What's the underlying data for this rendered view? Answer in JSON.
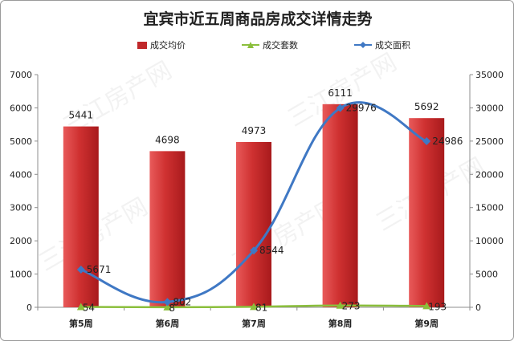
{
  "chart_data": {
    "type": "bar",
    "title": "宜宾市近五周商品房成交详情走势",
    "categories": [
      "第5周",
      "第6周",
      "第7周",
      "第8周",
      "第9周"
    ],
    "series": [
      {
        "name": "成交均价",
        "kind": "bar",
        "axis": "left",
        "color": "#c0282a",
        "values": [
          5441,
          4698,
          4973,
          6111,
          5692
        ]
      },
      {
        "name": "成交套数",
        "kind": "line",
        "axis": "right",
        "color": "#8bbf3c",
        "marker": "triangle",
        "values": [
          54,
          8,
          81,
          273,
          193
        ]
      },
      {
        "name": "成交面积",
        "kind": "line",
        "axis": "right",
        "color": "#3f78c4",
        "marker": "diamond",
        "smooth": true,
        "values": [
          5671,
          802,
          8544,
          29976,
          24986
        ]
      }
    ],
    "y_left": {
      "ylim": [
        0,
        7000
      ],
      "ticks": [
        0,
        1000,
        2000,
        3000,
        4000,
        5000,
        6000,
        7000
      ]
    },
    "y_right": {
      "ylim": [
        0,
        35000
      ],
      "ticks": [
        0,
        5000,
        10000,
        15000,
        20000,
        25000,
        30000,
        35000
      ]
    },
    "grid": false,
    "legend_position": "top"
  },
  "watermark": "三江房产网"
}
